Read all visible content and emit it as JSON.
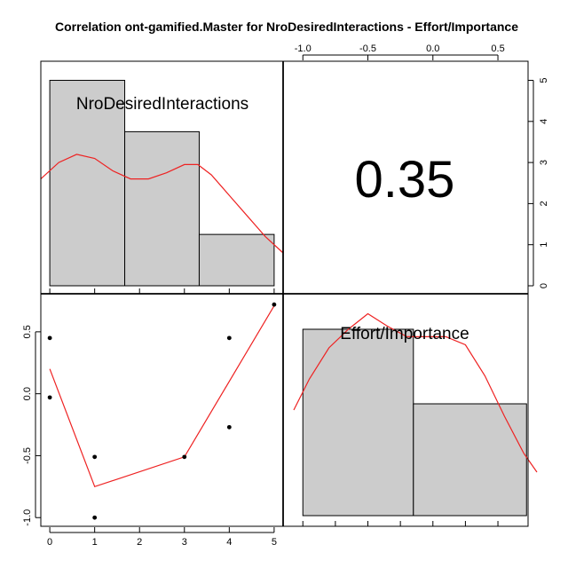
{
  "chart_data": {
    "type": "scatter-matrix",
    "title": "Correlation ont-gamified.Master for NroDesiredInteractions - Effort/Importance",
    "variables": [
      "NroDesiredInteractions",
      "Effort/Importance"
    ],
    "correlation": "0.35",
    "histograms": [
      {
        "variable": "NroDesiredInteractions",
        "bin_edges": [
          0,
          1.67,
          3.33,
          5
        ],
        "counts": [
          5,
          3.75,
          1.25
        ],
        "count_axis_ticks": [
          "0",
          "1",
          "2",
          "3",
          "4",
          "5"
        ],
        "count_axis_range": [
          0,
          5.4
        ]
      },
      {
        "variable": "Effort/Importance",
        "bin_edges": [
          -1.0,
          -0.15,
          0.72
        ],
        "counts": [
          3,
          1.8
        ],
        "bar_range": [
          0,
          3.5
        ]
      }
    ],
    "density_curves": [
      {
        "variable": "NroDesiredInteractions",
        "points": [
          [
            -0.2,
            2.6
          ],
          [
            0.2,
            3.0
          ],
          [
            0.6,
            3.2
          ],
          [
            1.0,
            3.1
          ],
          [
            1.4,
            2.8
          ],
          [
            1.8,
            2.6
          ],
          [
            2.2,
            2.6
          ],
          [
            2.6,
            2.75
          ],
          [
            3.0,
            2.95
          ],
          [
            3.3,
            2.95
          ],
          [
            3.6,
            2.7
          ],
          [
            4.0,
            2.2
          ],
          [
            4.4,
            1.7
          ],
          [
            4.8,
            1.2
          ],
          [
            5.2,
            0.8
          ]
        ]
      },
      {
        "variable": "Effort/Importance",
        "points": [
          [
            -1.07,
            1.7
          ],
          [
            -0.95,
            2.2
          ],
          [
            -0.8,
            2.7
          ],
          [
            -0.65,
            3.0
          ],
          [
            -0.5,
            3.25
          ],
          [
            -0.35,
            3.05
          ],
          [
            -0.2,
            2.88
          ],
          [
            -0.05,
            2.88
          ],
          [
            0.1,
            2.88
          ],
          [
            0.25,
            2.75
          ],
          [
            0.4,
            2.25
          ],
          [
            0.55,
            1.6
          ],
          [
            0.7,
            1.0
          ],
          [
            0.8,
            0.7
          ]
        ]
      }
    ],
    "scatter": {
      "xlabel": "NroDesiredInteractions",
      "ylabel": "Effort/Importance",
      "x": [
        0,
        0,
        1,
        1,
        3,
        4,
        4,
        5
      ],
      "y": [
        0.45,
        -0.03,
        -0.51,
        -1.0,
        -0.51,
        0.45,
        -0.27,
        0.72
      ],
      "fit_line": {
        "x": [
          0,
          1,
          3,
          5
        ],
        "y": [
          0.2,
          -0.75,
          -0.51,
          0.71
        ]
      },
      "xlim": [
        -0.2,
        5.2
      ],
      "ylim": [
        -1.07,
        0.8
      ],
      "xticks": [
        "0",
        "1",
        "2",
        "3",
        "4",
        "5"
      ],
      "yticks": [
        "-1.0",
        "-0.5",
        "0.0",
        "0.5"
      ]
    },
    "top_axis": {
      "ticks": [
        "-1.0",
        "-0.5",
        "0.0",
        "0.5"
      ],
      "range": [
        -1.07,
        0.8
      ]
    },
    "colors": {
      "bar_fill": "#cccccc",
      "bar_stroke": "#000000",
      "density": "#ee2222",
      "fit_line": "#ee2222",
      "points": "#000000"
    },
    "grid": false
  }
}
